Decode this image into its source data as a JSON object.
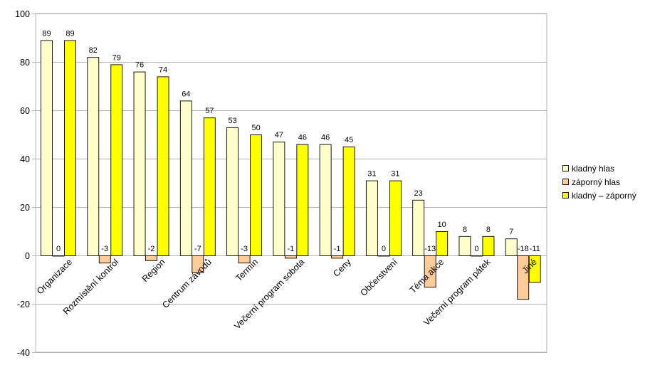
{
  "chart_data": {
    "type": "bar",
    "title": "",
    "xlabel": "",
    "ylabel": "",
    "ylim": [
      -40,
      100
    ],
    "yticks": [
      -40,
      -20,
      0,
      20,
      40,
      60,
      80,
      100
    ],
    "grid": true,
    "legend_position": "right",
    "categories": [
      "Organizace",
      "Rozmístění kontrol",
      "Region",
      "Centrum závodů",
      "Termín",
      "Večerní program sobota",
      "Ceny",
      "Občerstvení",
      "Téma akce",
      "Večerní program pátek",
      "Jiné"
    ],
    "series": [
      {
        "name": "kladný hlas",
        "color": "#ffffcc",
        "values": [
          89,
          82,
          76,
          64,
          53,
          47,
          46,
          31,
          23,
          8,
          7
        ]
      },
      {
        "name": "záporný hlas",
        "color": "#ffcc99",
        "values": [
          0,
          -3,
          -2,
          -7,
          -3,
          -1,
          -1,
          0,
          -13,
          0,
          -18
        ]
      },
      {
        "name": "kladný – záporný",
        "color": "#ffff00",
        "values": [
          89,
          79,
          74,
          57,
          50,
          46,
          45,
          31,
          10,
          8,
          -11
        ]
      }
    ]
  }
}
